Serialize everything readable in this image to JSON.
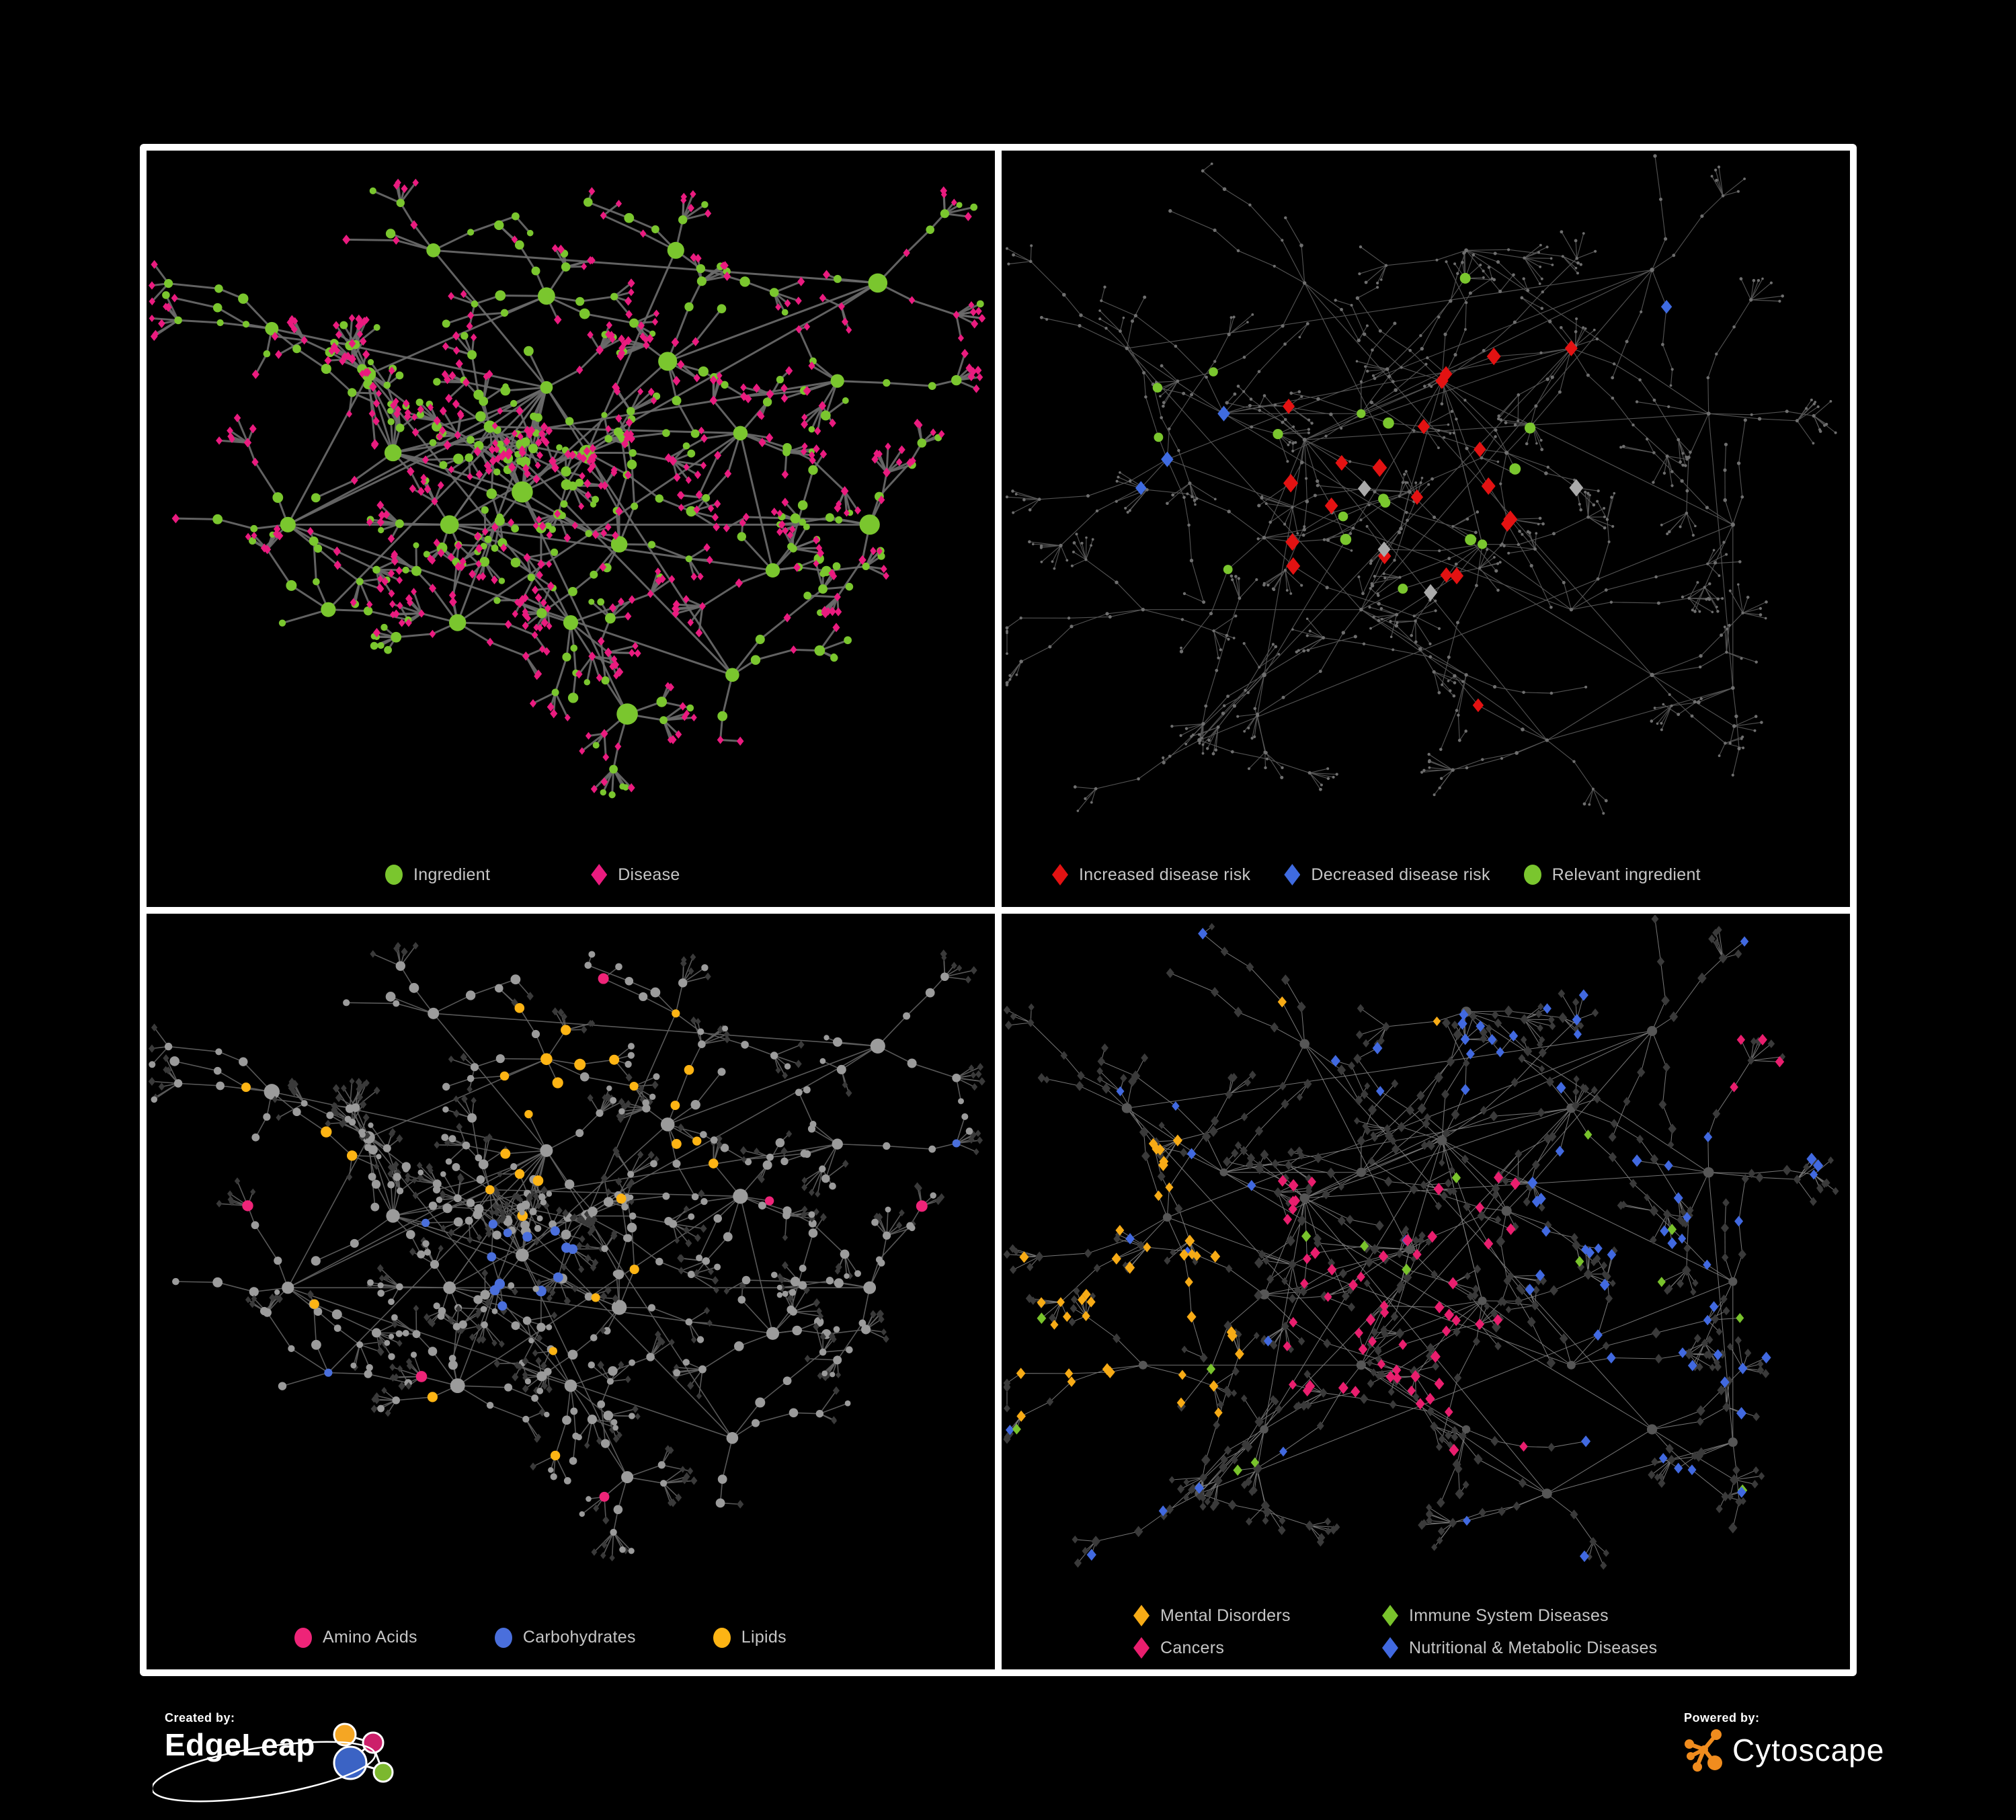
{
  "palette": {
    "green": "#7ac62e",
    "pink": "#ea1b7f",
    "red": "#e31212",
    "blue": "#3f6be0",
    "grayLight": "#aaaaaa",
    "grayMid": "#9b9b9b",
    "grayDark": "#3a3a3a",
    "grayCircle": "#565656",
    "tinyGray": "#6f6f6f",
    "orange": "#f7ab16",
    "cancerPink": "#e91e6e",
    "nutriBlue": "#4169e0",
    "immuneGreen": "#79c32c",
    "aminoPink": "#ee2478",
    "carbBlue": "#4a6fdc",
    "lipidOrange": "#fdb414",
    "legendText": "#c6c6c6",
    "panelBorder": "#ffffff",
    "background": "#000000",
    "edgeleapOrange": "#f5a623",
    "edgeleapPink": "#cc1f6a",
    "edgeleapBlue": "#3b63c4",
    "edgeleapGreen": "#7cb82f",
    "cytoscapeOrange": "#f08c1e"
  },
  "panels": {
    "p1": {
      "title": "ingredient-disease-network",
      "legend": [
        {
          "label": "Ingredient",
          "shape": "circle",
          "color": "#7ac62e"
        },
        {
          "label": "Disease",
          "shape": "diamond",
          "color": "#ea1b7f"
        }
      ]
    },
    "p2": {
      "title": "disease-risk-network",
      "legend": [
        {
          "label": "Increased disease risk",
          "shape": "diamond",
          "color": "#e31212"
        },
        {
          "label": "Decreased disease risk",
          "shape": "diamond",
          "color": "#3f6be0"
        },
        {
          "label": "Relevant ingredient",
          "shape": "circle",
          "color": "#7ac62e"
        }
      ]
    },
    "p3": {
      "title": "nutrient-class-network",
      "legend": [
        {
          "label": "Amino Acids",
          "shape": "circle",
          "color": "#ee2478"
        },
        {
          "label": "Carbohydrates",
          "shape": "circle",
          "color": "#4a6fdc"
        },
        {
          "label": "Lipids",
          "shape": "circle",
          "color": "#fdb414"
        }
      ]
    },
    "p4": {
      "title": "disease-category-network",
      "legend": [
        {
          "label": "Mental Disorders",
          "shape": "diamond",
          "color": "#f7ab16"
        },
        {
          "label": "Immune System Diseases",
          "shape": "diamond",
          "color": "#79c32c"
        },
        {
          "label": "Cancers",
          "shape": "diamond",
          "color": "#e91e6e"
        },
        {
          "label": "Nutritional & Metabolic Diseases",
          "shape": "diamond",
          "color": "#4169e0"
        }
      ]
    }
  },
  "networks": {
    "layouts": {
      "A": {
        "hubs": [
          [
            0.4,
            0.4,
            1.5
          ],
          [
            0.47,
            0.34,
            1.2
          ],
          [
            0.44,
            0.5,
            1.5
          ],
          [
            0.35,
            0.55,
            1.2
          ],
          [
            0.28,
            0.44,
            1.0
          ],
          [
            0.52,
            0.44,
            1.3
          ],
          [
            0.56,
            0.58,
            1.0
          ],
          [
            0.25,
            0.32,
            0.9
          ],
          [
            0.47,
            0.2,
            0.9
          ],
          [
            0.62,
            0.3,
            0.9
          ],
          [
            0.71,
            0.41,
            1.0
          ],
          [
            0.83,
            0.33,
            0.9
          ],
          [
            0.88,
            0.18,
            0.7
          ],
          [
            0.63,
            0.13,
            0.8
          ],
          [
            0.33,
            0.13,
            0.8
          ],
          [
            0.15,
            0.55,
            0.8
          ],
          [
            0.2,
            0.68,
            0.8
          ],
          [
            0.36,
            0.7,
            1.0
          ],
          [
            0.5,
            0.7,
            1.0
          ],
          [
            0.57,
            0.84,
            1.1
          ],
          [
            0.75,
            0.62,
            0.9
          ],
          [
            0.87,
            0.55,
            0.7
          ],
          [
            0.7,
            0.78,
            0.7
          ],
          [
            0.13,
            0.25,
            0.7
          ]
        ],
        "branch": {
          "min": 4,
          "max": 8,
          "stepMin": 1,
          "stepMax": 3,
          "seg": [
            36,
            78
          ],
          "fanProb": 0.62,
          "fanMin": 3,
          "fanMax": 8,
          "leaf": [
            22,
            46
          ]
        },
        "extraLinks": 10
      },
      "B": {
        "hubs": [
          [
            0.42,
            0.38,
            1.4
          ],
          [
            0.52,
            0.33,
            1.2
          ],
          [
            0.35,
            0.42,
            1.3
          ],
          [
            0.25,
            0.38,
            1.1
          ],
          [
            0.48,
            0.5,
            1.3
          ],
          [
            0.6,
            0.44,
            1.1
          ],
          [
            0.57,
            0.58,
            1.0
          ],
          [
            0.68,
            0.28,
            0.9
          ],
          [
            0.78,
            0.16,
            0.8
          ],
          [
            0.85,
            0.38,
            0.8
          ],
          [
            0.88,
            0.55,
            0.8
          ],
          [
            0.3,
            0.57,
            1.0
          ],
          [
            0.18,
            0.45,
            0.9
          ],
          [
            0.13,
            0.28,
            0.8
          ],
          [
            0.55,
            0.13,
            0.9
          ],
          [
            0.35,
            0.18,
            0.9
          ],
          [
            0.42,
            0.68,
            1.0
          ],
          [
            0.3,
            0.78,
            0.9
          ],
          [
            0.55,
            0.78,
            0.9
          ],
          [
            0.68,
            0.68,
            0.9
          ],
          [
            0.78,
            0.78,
            0.8
          ],
          [
            0.15,
            0.68,
            0.7
          ],
          [
            0.65,
            0.88,
            0.7
          ],
          [
            0.88,
            0.8,
            0.6
          ],
          [
            0.22,
            0.88,
            0.6
          ]
        ],
        "branch": {
          "min": 4,
          "max": 7,
          "stepMin": 2,
          "stepMax": 4,
          "seg": [
            40,
            85
          ],
          "fanProb": 0.55,
          "fanMin": 3,
          "fanMax": 8,
          "leaf": [
            22,
            50
          ]
        },
        "extraLinks": 12
      }
    },
    "panelConfigs": {
      "p1": {
        "layout": "A",
        "seed": 101,
        "paintSeed": 7,
        "edge": {
          "color": "#6a6a6a",
          "width": 3.0
        },
        "base": {
          "hub": {
            "shape": "circle",
            "color": "green",
            "size": [
              9,
              16
            ]
          },
          "mid": {
            "shape": "circle",
            "color": "green",
            "size": [
              5,
              8
            ]
          },
          "leaf": {
            "shape": "circle",
            "color": "green",
            "size": [
              4.5,
              6
            ]
          }
        },
        "rules": [
          {
            "on": [
              "mid"
            ],
            "prob": 0.45,
            "shape": "diamond",
            "color": "pink",
            "size": [
              6,
              7.5
            ]
          },
          {
            "on": [
              "leaf"
            ],
            "prob": 0.74,
            "shape": "diamond",
            "color": "pink",
            "size": [
              5.5,
              7
            ]
          }
        ]
      },
      "p2": {
        "layout": "B",
        "seed": 202,
        "paintSeed": 13,
        "edge": {
          "color": "#585858",
          "width": 1.15
        },
        "base": {
          "hub": {
            "shape": "circle",
            "color": "tinyGray",
            "size": [
              2.6,
              3.4
            ]
          },
          "mid": {
            "shape": "circle",
            "color": "tinyGray",
            "size": [
              2.0,
              2.8
            ]
          },
          "leaf": {
            "shape": "circle",
            "color": "tinyGray",
            "size": [
              1.8,
              2.4
            ]
          }
        },
        "rules": [
          {
            "on": [
              "hub",
              "mid"
            ],
            "zone": [
              0.33,
              0.27,
              0.68,
              0.63
            ],
            "prob": 0.16,
            "shape": "diamond",
            "color": "red",
            "size": [
              11,
              14
            ]
          },
          {
            "on": [
              "hub",
              "mid"
            ],
            "zone": [
              0.1,
              0.33,
              0.28,
              0.62
            ],
            "prob": 0.22,
            "shape": "diamond",
            "color": "blue",
            "size": [
              10,
              13
            ]
          },
          {
            "on": [
              "mid"
            ],
            "zone": [
              0.78,
              0.1,
              0.96,
              0.24
            ],
            "prob": 0.25,
            "shape": "diamond",
            "color": "blue",
            "size": [
              10,
              12
            ]
          },
          {
            "on": [
              "hub",
              "mid"
            ],
            "zone": [
              0.28,
              0.24,
              0.72,
              0.66
            ],
            "prob": 0.035,
            "shape": "diamond",
            "color": "grayLight",
            "size": [
              10,
              13
            ]
          },
          {
            "on": [
              "mid"
            ],
            "zone": [
              0.56,
              0.72,
              0.78,
              0.92
            ],
            "prob": 0.1,
            "shape": "diamond",
            "color": "red",
            "size": [
              10,
              12
            ]
          },
          {
            "on": [
              "hub",
              "mid"
            ],
            "zone": [
              0.06,
              0.18,
              0.64,
              0.66
            ],
            "prob": 0.09,
            "shape": "circle",
            "color": "green",
            "size": [
              6.5,
              8.5
            ]
          }
        ]
      },
      "p3": {
        "layout": "A",
        "seed": 101,
        "paintSeed": 21,
        "edge": {
          "color": "#5f5f5f",
          "width": 1.6
        },
        "base": {
          "hub": {
            "shape": "circle",
            "color": "grayMid",
            "size": [
              8,
              12
            ]
          },
          "mid": {
            "shape": "circle",
            "color": "grayMid",
            "size": [
              5,
              7.5
            ]
          },
          "leaf": {
            "shape": "diamond",
            "color": "grayDark",
            "size": [
              5,
              6.5
            ]
          }
        },
        "rules": [
          {
            "on": [
              "leaf"
            ],
            "prob": 0.2,
            "shape": "circle",
            "color": "grayMid",
            "size": [
              4,
              5.5
            ]
          },
          {
            "on": [
              "hub",
              "mid"
            ],
            "zone": [
              0.38,
              0.12,
              0.64,
              0.4
            ],
            "prob": 0.45,
            "shape": "circle",
            "color": "lipidOrange",
            "size": [
              6,
              9
            ]
          },
          {
            "on": [
              "hub",
              "mid"
            ],
            "zone": [
              0.4,
              0.42,
              0.6,
              0.58
            ],
            "prob": 0.3,
            "shape": "circle",
            "color": "carbBlue",
            "size": [
              6,
              8
            ]
          },
          {
            "on": [
              "hub",
              "mid"
            ],
            "prob": 0.05,
            "shape": "circle",
            "color": "lipidOrange",
            "size": [
              6,
              8.5
            ]
          },
          {
            "on": [
              "hub",
              "mid"
            ],
            "prob": 0.035,
            "shape": "circle",
            "color": "aminoPink",
            "size": [
              6.5,
              8.5
            ]
          },
          {
            "on": [
              "hub",
              "mid"
            ],
            "prob": 0.015,
            "shape": "circle",
            "color": "carbBlue",
            "size": [
              6,
              7.5
            ]
          }
        ]
      },
      "p4": {
        "layout": "B",
        "seed": 202,
        "paintSeed": 33,
        "edge": {
          "color": "#7d7d7d",
          "width": 1.05
        },
        "base": {
          "hub": {
            "shape": "circle",
            "color": "grayCircle",
            "size": [
              6,
              8
            ]
          },
          "mid": {
            "shape": "diamond",
            "color": "grayDark",
            "size": [
              6.5,
              8.5
            ]
          },
          "leaf": {
            "shape": "diamond",
            "color": "grayDark",
            "size": [
              5.5,
              7
            ]
          }
        },
        "rules": [
          {
            "on": [
              "mid",
              "leaf"
            ],
            "zone": [
              0.02,
              0.33,
              0.3,
              0.74
            ],
            "prob": 0.5,
            "shape": "diamond",
            "color": "orange",
            "size": [
              7.5,
              9.5
            ]
          },
          {
            "on": [
              "mid",
              "leaf"
            ],
            "zone": [
              0.33,
              0.38,
              0.62,
              0.8
            ],
            "prob": 0.28,
            "shape": "diamond",
            "color": "cancerPink",
            "size": [
              7.5,
              9.5
            ]
          },
          {
            "on": [
              "mid",
              "leaf"
            ],
            "zone": [
              0.62,
              0.32,
              0.98,
              0.88
            ],
            "prob": 0.2,
            "shape": "diamond",
            "color": "nutriBlue",
            "size": [
              7.5,
              9.5
            ]
          },
          {
            "on": [
              "mid",
              "leaf"
            ],
            "zone": [
              0.4,
              0.03,
              0.75,
              0.28
            ],
            "prob": 0.15,
            "shape": "diamond",
            "color": "nutriBlue",
            "size": [
              7.5,
              9.5
            ]
          },
          {
            "on": [
              "mid",
              "leaf"
            ],
            "zone": [
              0.84,
              0.1,
              0.99,
              0.3
            ],
            "prob": 0.3,
            "shape": "diamond",
            "color": "cancerPink",
            "size": [
              7.5,
              9
            ]
          },
          {
            "on": [
              "mid",
              "leaf"
            ],
            "zone": [
              0.12,
              0.01,
              0.55,
              0.16
            ],
            "prob": 0.08,
            "shape": "diamond",
            "color": "orange",
            "size": [
              7,
              9
            ]
          },
          {
            "on": [
              "mid",
              "leaf"
            ],
            "prob": 0.02,
            "shape": "diamond",
            "color": "immuneGreen",
            "size": [
              7.5,
              9
            ]
          },
          {
            "on": [
              "mid",
              "leaf"
            ],
            "prob": 0.035,
            "shape": "diamond",
            "color": "nutriBlue",
            "size": [
              7,
              9
            ]
          }
        ]
      }
    }
  },
  "footer": {
    "created_by_label": "Created by:",
    "created_brand": "EdgeLeap",
    "powered_by_label": "Powered by:",
    "powered_brand": "Cytoscape"
  }
}
